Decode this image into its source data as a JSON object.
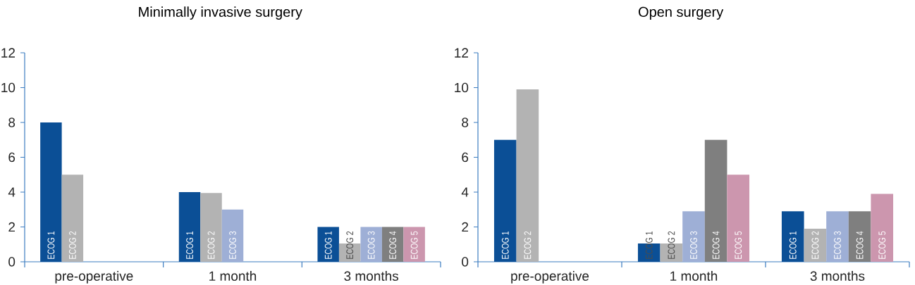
{
  "chart_data": [
    {
      "type": "bar",
      "title": "Minimally invasive surgery",
      "categories": [
        "pre-operative",
        "1 month",
        "3 months"
      ],
      "ylim": [
        0,
        12
      ],
      "yticks": [
        0,
        2,
        4,
        6,
        8,
        10,
        12
      ],
      "series": [
        {
          "name": "ECOG 1",
          "color": "#0b4f96",
          "values": [
            8,
            4,
            2
          ]
        },
        {
          "name": "ECOG 2",
          "color": "#b3b3b3",
          "values": [
            5,
            3.95,
            1.05
          ]
        },
        {
          "name": "ECOG 3",
          "color": "#9eafd6",
          "values": [
            null,
            3,
            2
          ]
        },
        {
          "name": "ECOG 4",
          "color": "#7f7f7f",
          "values": [
            null,
            null,
            2
          ]
        },
        {
          "name": "ECOG 5",
          "color": "#cc96ae",
          "values": [
            null,
            null,
            2
          ]
        }
      ]
    },
    {
      "type": "bar",
      "title": "Open surgery",
      "categories": [
        "pre-operative",
        "1 month",
        "3 months"
      ],
      "ylim": [
        0,
        12
      ],
      "yticks": [
        0,
        2,
        4,
        6,
        8,
        10,
        12
      ],
      "series": [
        {
          "name": "ECOG 1",
          "color": "#0b4f96",
          "values": [
            7,
            1.05,
            2.9
          ]
        },
        {
          "name": "ECOG 2",
          "color": "#b3b3b3",
          "values": [
            9.9,
            1.05,
            1.9
          ]
        },
        {
          "name": "ECOG 3",
          "color": "#9eafd6",
          "values": [
            null,
            2.9,
            2.9
          ]
        },
        {
          "name": "ECOG 4",
          "color": "#7f7f7f",
          "values": [
            null,
            7,
            2.9
          ]
        },
        {
          "name": "ECOG 5",
          "color": "#cc96ae",
          "values": [
            null,
            5,
            3.9
          ]
        }
      ]
    }
  ]
}
